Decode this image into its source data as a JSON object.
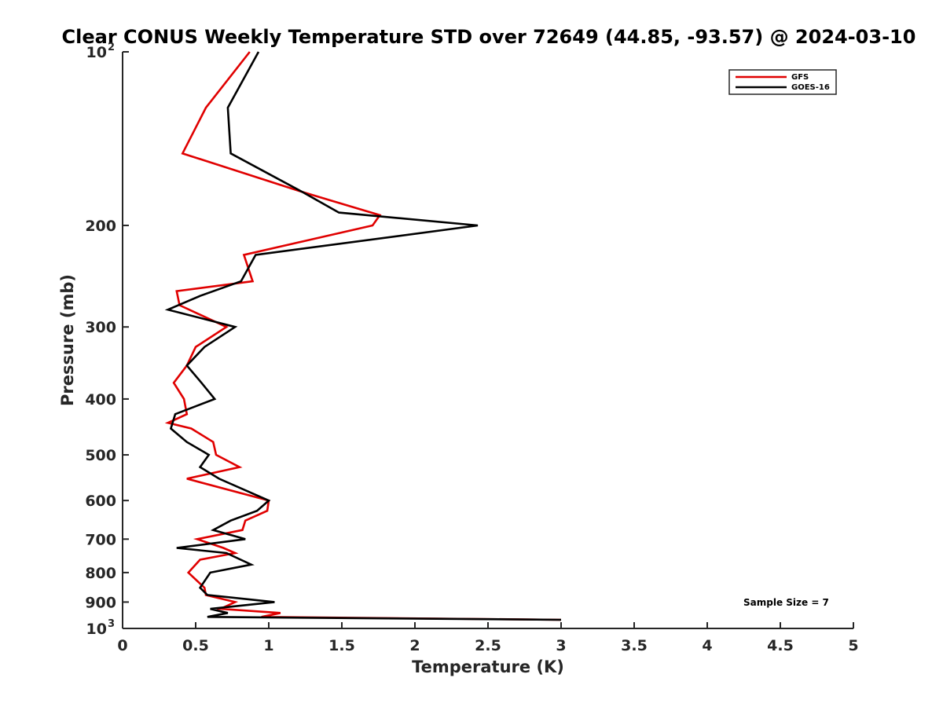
{
  "chart_data": {
    "type": "line",
    "title": "Clear CONUS Weekly Temperature STD over 72649 (44.85, -93.57) @ 2024-03-10",
    "xlabel": "Temperature (K)",
    "ylabel": "Pressure (mb)",
    "xlim": [
      0,
      5
    ],
    "ylim": [
      100,
      1000
    ],
    "y_scale": "log",
    "y_reversed": true,
    "x_ticks": [
      "0",
      "0.5",
      "1",
      "1.5",
      "2",
      "2.5",
      "3",
      "3.5",
      "4",
      "4.5",
      "5"
    ],
    "y_ticks": [
      {
        "value": 100,
        "label": "10",
        "exp": "2"
      },
      {
        "value": 200,
        "label": "200"
      },
      {
        "value": 300,
        "label": "300"
      },
      {
        "value": 400,
        "label": "400"
      },
      {
        "value": 500,
        "label": "500"
      },
      {
        "value": 600,
        "label": "600"
      },
      {
        "value": 700,
        "label": "700"
      },
      {
        "value": 800,
        "label": "800"
      },
      {
        "value": 900,
        "label": "900"
      },
      {
        "value": 1000,
        "label": "10",
        "exp": "3"
      }
    ],
    "grid": false,
    "legend_position": "top-right",
    "annotation": "Sample Size = 7",
    "series": [
      {
        "name": "GFS",
        "color": "#e00000",
        "points": [
          [
            0.87,
            100
          ],
          [
            0.57,
            125
          ],
          [
            0.41,
            150
          ],
          [
            1.23,
            175
          ],
          [
            1.76,
            192
          ],
          [
            1.71,
            200
          ],
          [
            0.83,
            225
          ],
          [
            0.89,
            250
          ],
          [
            0.37,
            260
          ],
          [
            0.39,
            275
          ],
          [
            0.71,
            300
          ],
          [
            0.5,
            325
          ],
          [
            0.44,
            350
          ],
          [
            0.35,
            375
          ],
          [
            0.42,
            400
          ],
          [
            0.44,
            425
          ],
          [
            0.31,
            440
          ],
          [
            0.47,
            450
          ],
          [
            0.62,
            475
          ],
          [
            0.64,
            500
          ],
          [
            0.8,
            525
          ],
          [
            0.44,
            550
          ],
          [
            1.0,
            600
          ],
          [
            0.99,
            625
          ],
          [
            0.84,
            650
          ],
          [
            0.82,
            675
          ],
          [
            0.51,
            700
          ],
          [
            0.69,
            725
          ],
          [
            0.77,
            740
          ],
          [
            0.53,
            760
          ],
          [
            0.45,
            800
          ],
          [
            0.56,
            850
          ],
          [
            0.57,
            875
          ],
          [
            0.77,
            900
          ],
          [
            0.67,
            925
          ],
          [
            1.08,
            940
          ],
          [
            0.95,
            955
          ],
          [
            3.0,
            966
          ]
        ]
      },
      {
        "name": "GOES-16",
        "color": "#000000",
        "points": [
          [
            0.93,
            100
          ],
          [
            0.72,
            125
          ],
          [
            0.74,
            150
          ],
          [
            1.23,
            175
          ],
          [
            1.48,
            190
          ],
          [
            2.43,
            200
          ],
          [
            0.91,
            225
          ],
          [
            0.81,
            250
          ],
          [
            0.53,
            265
          ],
          [
            0.31,
            280
          ],
          [
            0.77,
            300
          ],
          [
            0.56,
            325
          ],
          [
            0.44,
            350
          ],
          [
            0.54,
            375
          ],
          [
            0.63,
            400
          ],
          [
            0.36,
            425
          ],
          [
            0.33,
            450
          ],
          [
            0.44,
            475
          ],
          [
            0.59,
            500
          ],
          [
            0.53,
            525
          ],
          [
            0.66,
            550
          ],
          [
            1.0,
            600
          ],
          [
            0.92,
            625
          ],
          [
            0.74,
            650
          ],
          [
            0.62,
            675
          ],
          [
            0.84,
            700
          ],
          [
            0.37,
            725
          ],
          [
            0.71,
            740
          ],
          [
            0.88,
            775
          ],
          [
            0.6,
            800
          ],
          [
            0.53,
            850
          ],
          [
            0.58,
            875
          ],
          [
            1.04,
            900
          ],
          [
            0.6,
            925
          ],
          [
            0.72,
            940
          ],
          [
            0.58,
            955
          ],
          [
            3.0,
            966
          ]
        ]
      }
    ]
  }
}
